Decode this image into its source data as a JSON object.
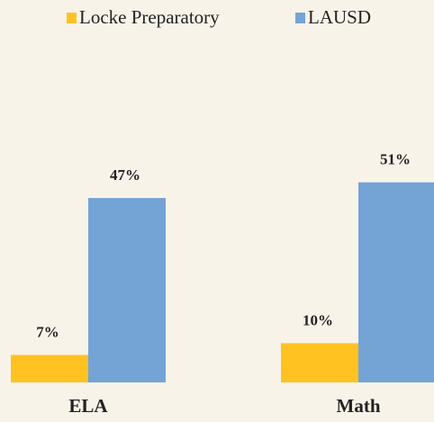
{
  "chart_data": {
    "type": "bar",
    "categories": [
      "ELA",
      "Math"
    ],
    "series": [
      {
        "name": "Locke Preparatory",
        "color": "#ffc220",
        "values": [
          7,
          10
        ],
        "value_labels": [
          "7%",
          "10%"
        ]
      },
      {
        "name": "LAUSD",
        "color": "#74a3d6",
        "values": [
          47,
          51
        ],
        "value_labels": [
          "47%",
          "51%"
        ]
      }
    ],
    "legend": "top"
  }
}
